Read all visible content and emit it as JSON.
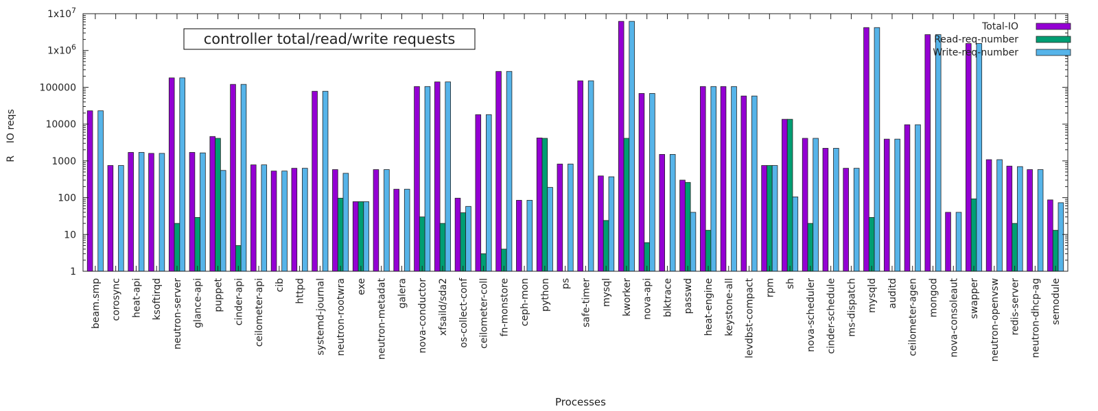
{
  "chart_data": {
    "type": "bar",
    "title": "controller total/read/write requests",
    "xlabel": "Processes",
    "ylabel": "R    IO reqs",
    "yscale": "log",
    "ylim": [
      1,
      10000000
    ],
    "y_ticks": [
      {
        "value": 1,
        "label": "1"
      },
      {
        "value": 10,
        "label": "10"
      },
      {
        "value": 100,
        "label": "100"
      },
      {
        "value": 1000,
        "label": "1000"
      },
      {
        "value": 10000,
        "label": "10000"
      },
      {
        "value": 100000,
        "label": "100000"
      },
      {
        "value": 1000000,
        "label": "1x10",
        "sup": "6"
      },
      {
        "value": 10000000,
        "label": "1x10",
        "sup": "7"
      }
    ],
    "grid": false,
    "legend_position": "top-right",
    "categories": [
      "beam.smp",
      "corosync",
      "heat-api",
      "ksoftirqd",
      "neutron-server",
      "glance-api",
      "puppet",
      "cinder-api",
      "ceilometer-api",
      "cib",
      "httpd",
      "systemd-journal",
      "neutron-rootwra",
      "exe",
      "neutron-metadat",
      "galera",
      "nova-conductor",
      "xfsaild/sda2",
      "os-collect-conf",
      "ceilometer-coll",
      "fn-monstore",
      "ceph-mon",
      "python",
      "ps",
      "safe-timer",
      "mysql",
      "kworker",
      "nova-api",
      "blktrace",
      "passwd",
      "heat-engine",
      "keystone-all",
      "levdbst-compact",
      "rpm",
      "sh",
      "nova-scheduler",
      "cinder-schedule",
      "ms-dispatch",
      "mysqld",
      "auditd",
      "ceilometer-agen",
      "mongod",
      "nova-consoleaut",
      "swapper",
      "neutron-openvsw",
      "redis-server",
      "neutron-dhcp-ag",
      "semodule"
    ],
    "series": [
      {
        "name": "Total-IO",
        "color": "#9400d3",
        "values": [
          23000,
          750,
          1700,
          1600,
          180000,
          1700,
          4600,
          120000,
          780,
          530,
          630,
          78000,
          580,
          78,
          580,
          170,
          105000,
          140000,
          97,
          18000,
          270000,
          85,
          4200,
          820,
          150000,
          390,
          6200000,
          68000,
          1500,
          300,
          105000,
          105000,
          58000,
          750,
          13500,
          4100,
          2200,
          630,
          4200000,
          3900,
          9600,
          2700000,
          40,
          1550000,
          1080,
          720,
          580,
          87
        ]
      },
      {
        "name": "Read-req-number",
        "color": "#009e73",
        "values": [
          1,
          1,
          1,
          1,
          20,
          29,
          4100,
          5,
          1,
          1,
          1,
          1,
          97,
          78,
          1,
          1,
          30,
          20,
          39,
          3,
          4,
          1,
          4100,
          1,
          1,
          24,
          4100,
          6,
          1,
          260,
          13,
          1,
          1,
          750,
          13500,
          20,
          1,
          1,
          29,
          1,
          1,
          1,
          1,
          93,
          1,
          20,
          1,
          13
        ]
      },
      {
        "name": "Write-req-number",
        "color": "#56b4e9",
        "values": [
          23000,
          750,
          1700,
          1600,
          180000,
          1650,
          550,
          120000,
          780,
          530,
          630,
          78000,
          460,
          78,
          580,
          170,
          105000,
          140000,
          58,
          18000,
          270000,
          85,
          190,
          820,
          150000,
          370,
          6200000,
          68000,
          1500,
          40,
          105000,
          105000,
          58000,
          750,
          105,
          4100,
          2200,
          630,
          4200000,
          3900,
          9600,
          2700000,
          40,
          1550000,
          1080,
          700,
          580,
          73
        ]
      }
    ]
  }
}
